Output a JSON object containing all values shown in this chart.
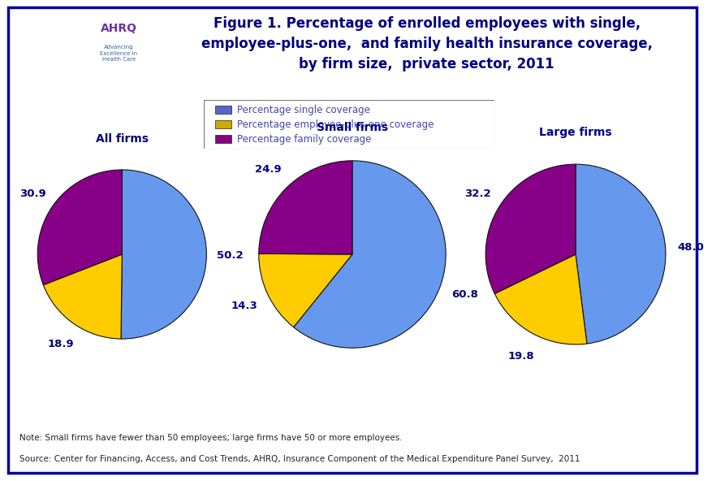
{
  "title_line1": "Figure 1. Percentage of enrolled employees with single,",
  "title_line2": "employee-plus-one,  and family health insurance coverage,",
  "title_line3": "by firm size,  private sector, 2011",
  "pie_charts": [
    {
      "title": "All firms",
      "values": [
        50.2,
        18.9,
        30.9
      ],
      "labels": [
        "50.2",
        "18.9",
        "30.9"
      ]
    },
    {
      "title": "Small firms",
      "values": [
        60.8,
        14.3,
        24.9
      ],
      "labels": [
        "60.8",
        "14.3",
        "24.9"
      ]
    },
    {
      "title": "Large firms",
      "values": [
        48.0,
        19.8,
        32.2
      ],
      "labels": [
        "48.0",
        "19.8",
        "32.2"
      ]
    }
  ],
  "colors": [
    "#6699EE",
    "#FFCC00",
    "#880088"
  ],
  "legend_labels": [
    "Percentage single coverage",
    "Percentage employee-plus-one coverage",
    "Percentage family coverage"
  ],
  "legend_colors": [
    "#5566CC",
    "#CCAA00",
    "#880088"
  ],
  "note_line1": "Note: Small firms have fewer than 50 employees; large firms have 50 or more employees.",
  "note_line2": "Source: Center for Financing, Access, and Cost Trends, AHRQ, Insurance Component of the Medical Expenditure Panel Survey,  2011",
  "bg_color": "#FFFFFF",
  "border_color": "#000099",
  "title_color": "#000080",
  "label_color": "#000080",
  "legend_text_color": "#4444AA",
  "header_bar_color": "#000080",
  "header_bar2_color": "#1155AA"
}
